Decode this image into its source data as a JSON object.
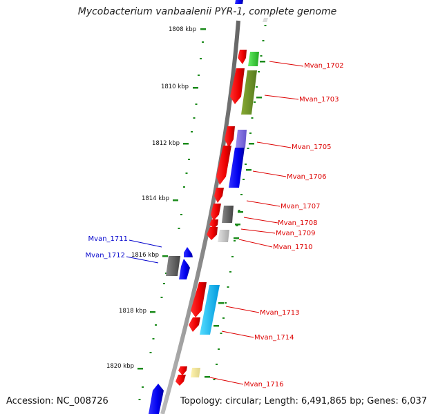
{
  "title": "Mycobacterium vanbaalenii PYR-1, complete genome",
  "accession_label": "Accession: NC_008726",
  "summary_label": "Topology: circular; Length: 6,491,865 bp; Genes: 6,037",
  "colors": {
    "backbone": "#8a8a8a",
    "tick": "#1a8a1a",
    "label_red": "#dd0000",
    "label_blue": "#0000cc"
  },
  "kbp_marks": [
    "1808 kbp",
    "1810 kbp",
    "1812 kbp",
    "1814 kbp",
    "1816 kbp",
    "1818 kbp",
    "1820 kbp"
  ],
  "gene_labels": [
    {
      "text": "Mvan_1702",
      "strand": "minus"
    },
    {
      "text": "Mvan_1703",
      "strand": "minus"
    },
    {
      "text": "Mvan_1705",
      "strand": "minus"
    },
    {
      "text": "Mvan_1706",
      "strand": "minus"
    },
    {
      "text": "Mvan_1707",
      "strand": "minus"
    },
    {
      "text": "Mvan_1708",
      "strand": "minus"
    },
    {
      "text": "Mvan_1709",
      "strand": "minus"
    },
    {
      "text": "Mvan_1710",
      "strand": "minus"
    },
    {
      "text": "Mvan_1711",
      "strand": "plus"
    },
    {
      "text": "Mvan_1712",
      "strand": "plus"
    },
    {
      "text": "Mvan_1713",
      "strand": "minus"
    },
    {
      "text": "Mvan_1714",
      "strand": "minus"
    },
    {
      "text": "Mvan_1716",
      "strand": "minus"
    }
  ]
}
